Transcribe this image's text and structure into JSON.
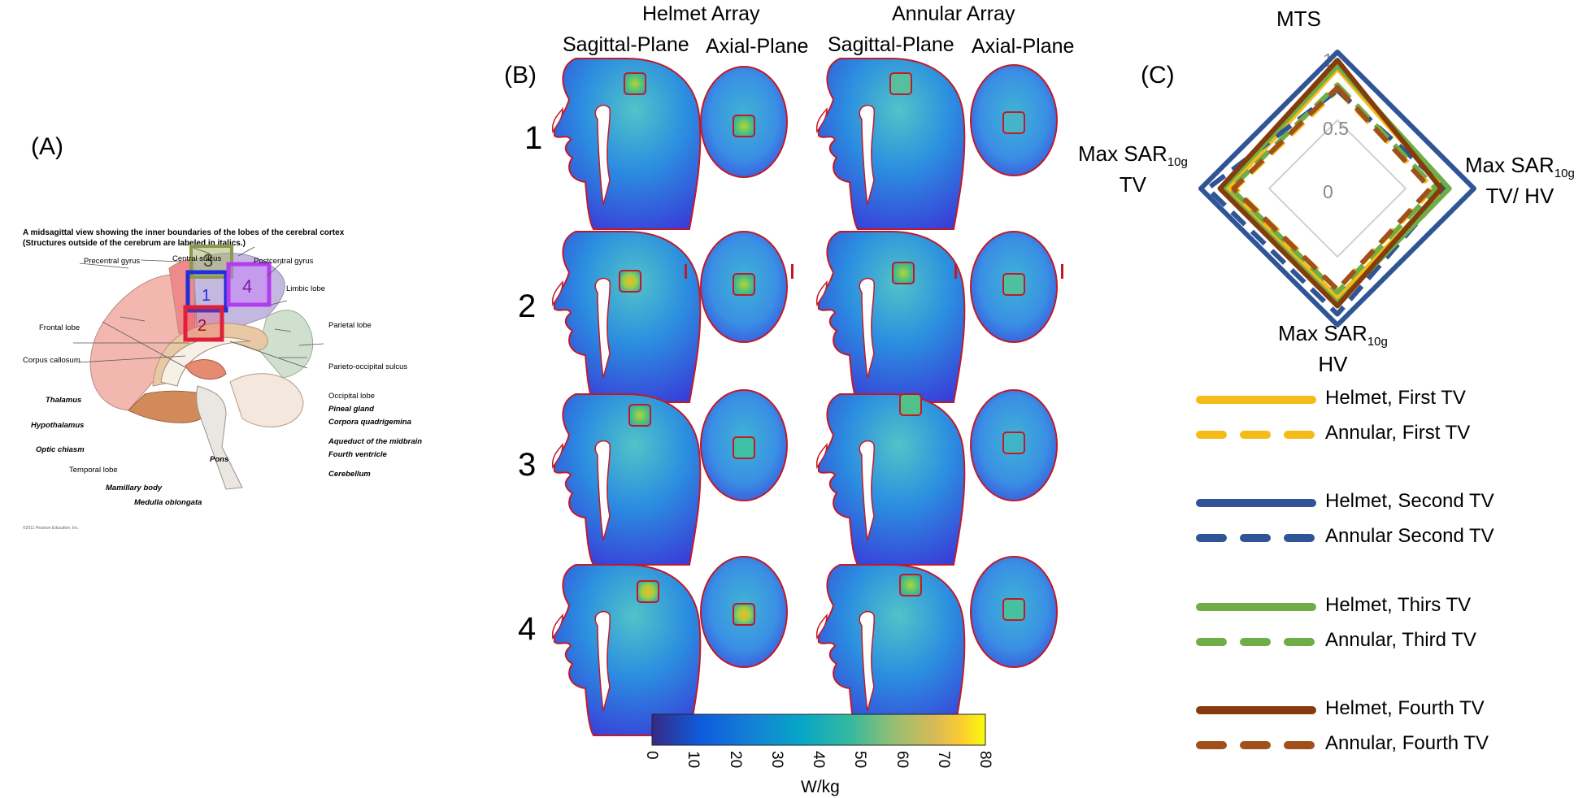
{
  "panel_labels": {
    "a": "(A)",
    "b": "(B)",
    "c": "(C)"
  },
  "panel_a": {
    "title_line1": "A midsagittal view showing the inner boundaries of the lobes of the cerebral cortex",
    "title_line2": "(Structures outside of the cerebrum are labeled in italics.)",
    "labels": {
      "precentral": "Precentral gyrus",
      "central": "Central sulcus",
      "postcentral": "Postcentral gyrus",
      "limbic": "Limbic lobe",
      "frontal": "Frontal lobe",
      "parietal": "Parietal lobe",
      "corpus": "Corpus callosum",
      "parieto_occipital": "Parieto-occipital sulcus",
      "thalamus": "Thalamus",
      "occipital": "Occipital lobe",
      "pineal": "Pineal gland",
      "hypothalamus": "Hypothalamus",
      "corpora": "Corpora quadrigemina",
      "optic": "Optic chiasm",
      "aqueduct": "Aqueduct of the midbrain",
      "pons": "Pons",
      "fourth_ventricle": "Fourth ventricle",
      "temporal": "Temporal lobe",
      "cerebellum": "Cerebellum",
      "mamillary": "Mamillary body",
      "medulla": "Medulla oblongata",
      "copyright": "©2011 Pearson Education, Inc."
    },
    "target_boxes": [
      {
        "label": "1",
        "color": "#1f2fd6"
      },
      {
        "label": "2",
        "color": "#e0203a"
      },
      {
        "label": "3",
        "color": "#8a9a4a"
      },
      {
        "label": "4",
        "color": "#b43cf0"
      }
    ]
  },
  "panel_b": {
    "group_helmet": "Helmet Array",
    "group_annular": "Annular Array",
    "col_sagittal_1": "Sagittal-Plane",
    "col_axial_1": "Axial-Plane",
    "col_sagittal_2": "Sagittal-Plane",
    "col_axial_2": "Axial-Plane",
    "rows": [
      "1",
      "2",
      "3",
      "4"
    ],
    "colorbar": {
      "ticks": [
        "0",
        "10",
        "20",
        "30",
        "40",
        "50",
        "60",
        "70",
        "80"
      ],
      "unit": "W/kg",
      "min": 0,
      "max": 80
    }
  },
  "panel_c": {
    "axis_top": "MTS",
    "axis_right_main": "Max SAR",
    "axis_right_sub": "10g",
    "axis_right_second": "TV/ HV",
    "axis_bottom_main": "Max SAR",
    "axis_bottom_sub": "10g",
    "axis_bottom_second": "HV",
    "axis_left_main": "Max SAR",
    "axis_left_sub": "10g",
    "axis_left_second": "TV",
    "ring_labels": [
      "1",
      "0.5",
      "0"
    ],
    "legend": [
      {
        "label": "Helmet, First TV",
        "color": "#f5bb18",
        "dashed": false
      },
      {
        "label": "Annular, First TV",
        "color": "#f5bb18",
        "dashed": true
      },
      {
        "label": "Helmet, Second TV",
        "color": "#2f5597",
        "dashed": false
      },
      {
        "label": "Annular Second TV",
        "color": "#2f5597",
        "dashed": true
      },
      {
        "label": "Helmet, Thirs TV",
        "color": "#70ad47",
        "dashed": false
      },
      {
        "label": "Annular, Third TV",
        "color": "#70ad47",
        "dashed": true
      },
      {
        "label": "Helmet, Fourth TV",
        "color": "#843c0c",
        "dashed": false
      },
      {
        "label": "Annular, Fourth TV",
        "color": "#a0501a",
        "dashed": true
      }
    ]
  },
  "chart_data": {
    "type": "radar",
    "axes": [
      "MTS",
      "Max SAR10g TV/ HV",
      "Max SAR10g HV",
      "Max SAR10g TV"
    ],
    "range": [
      0,
      1
    ],
    "series": [
      {
        "name": "Helmet, First TV",
        "values": [
          0.88,
          0.78,
          0.8,
          0.8
        ]
      },
      {
        "name": "Annular, First TV",
        "values": [
          0.72,
          0.7,
          0.74,
          0.75
        ]
      },
      {
        "name": "Helmet, Second TV",
        "values": [
          1.0,
          1.0,
          1.0,
          1.0
        ]
      },
      {
        "name": "Annular Second TV",
        "values": [
          0.72,
          0.8,
          0.92,
          0.95
        ]
      },
      {
        "name": "Helmet, Thirs TV",
        "values": [
          0.9,
          0.82,
          0.84,
          0.84
        ]
      },
      {
        "name": "Annular, Third TV",
        "values": [
          0.76,
          0.72,
          0.76,
          0.78
        ]
      },
      {
        "name": "Helmet, Fourth TV",
        "values": [
          0.94,
          0.76,
          0.86,
          0.86
        ]
      },
      {
        "name": "Annular, Fourth TV",
        "values": [
          0.74,
          0.68,
          0.74,
          0.76
        ]
      }
    ]
  }
}
